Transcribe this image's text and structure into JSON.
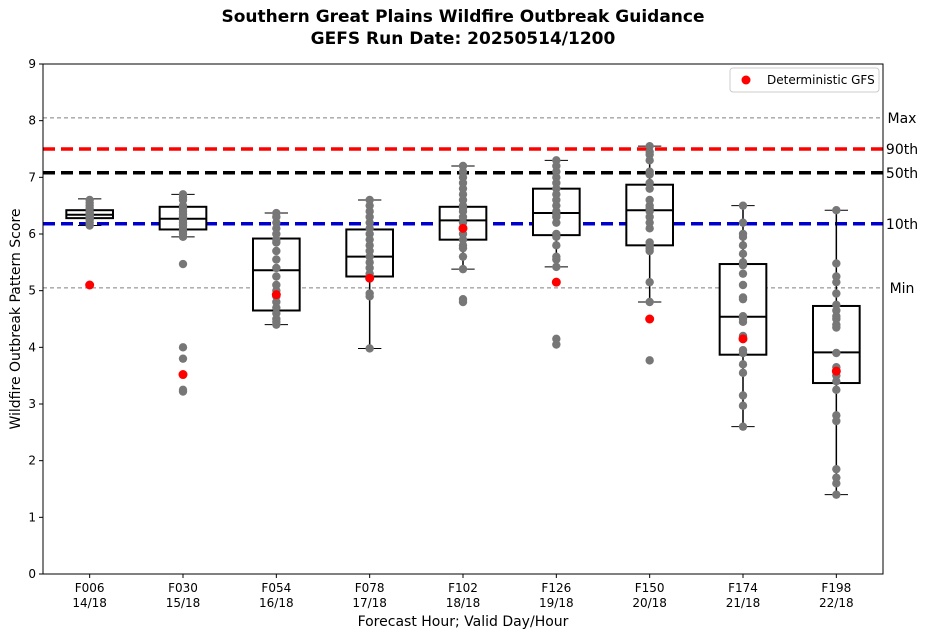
{
  "chart_data": {
    "type": "box",
    "title": "Southern Great Plains Wildfire Outbreak Guidance",
    "subtitle": "GEFS Run Date: 20250514/1200",
    "xlabel": "Forecast Hour; Valid Day/Hour",
    "ylabel": "Wildfire Outbreak Pattern Score",
    "ylim": [
      0,
      9
    ],
    "yticks": [
      "0",
      "1",
      "2",
      "3",
      "4",
      "5",
      "6",
      "7",
      "8",
      "9"
    ],
    "grid": false,
    "legend": {
      "placement": "top-right",
      "entries": [
        {
          "label": "Deterministic GFS",
          "color": "#ff0000"
        }
      ]
    },
    "reference_lines": [
      {
        "label": "Max",
        "value": 8.05,
        "color": "#808080",
        "style": "dashed-thin"
      },
      {
        "label": "90th",
        "value": 7.5,
        "color": "#ff0000",
        "style": "dashed-thick"
      },
      {
        "label": "50th",
        "value": 7.08,
        "color": "#000000",
        "style": "dashed-thick"
      },
      {
        "label": "10th",
        "value": 6.18,
        "color": "#0000cc",
        "style": "dashed-thick"
      },
      {
        "label": "Min",
        "value": 5.05,
        "color": "#808080",
        "style": "dashed-thin"
      }
    ],
    "categories": [
      {
        "hour": "F006",
        "valid": "14/18"
      },
      {
        "hour": "F030",
        "valid": "15/18"
      },
      {
        "hour": "F054",
        "valid": "16/18"
      },
      {
        "hour": "F078",
        "valid": "17/18"
      },
      {
        "hour": "F102",
        "valid": "18/18"
      },
      {
        "hour": "F126",
        "valid": "19/18"
      },
      {
        "hour": "F150",
        "valid": "20/18"
      },
      {
        "hour": "F174",
        "valid": "21/18"
      },
      {
        "hour": "F198",
        "valid": "22/18"
      }
    ],
    "boxes": [
      {
        "whislo": 6.15,
        "q1": 6.28,
        "med": 6.34,
        "q3": 6.42,
        "whishi": 6.62
      },
      {
        "whislo": 5.95,
        "q1": 6.08,
        "med": 6.27,
        "q3": 6.48,
        "whishi": 6.7
      },
      {
        "whislo": 4.4,
        "q1": 4.65,
        "med": 5.36,
        "q3": 5.92,
        "whishi": 6.37
      },
      {
        "whislo": 3.98,
        "q1": 5.25,
        "med": 5.6,
        "q3": 6.08,
        "whishi": 6.6
      },
      {
        "whislo": 5.38,
        "q1": 5.9,
        "med": 6.24,
        "q3": 6.48,
        "whishi": 7.2
      },
      {
        "whislo": 5.42,
        "q1": 5.98,
        "med": 6.37,
        "q3": 6.8,
        "whishi": 7.3
      },
      {
        "whislo": 4.8,
        "q1": 5.8,
        "med": 6.42,
        "q3": 6.87,
        "whishi": 7.55
      },
      {
        "whislo": 2.6,
        "q1": 3.87,
        "med": 4.54,
        "q3": 5.47,
        "whishi": 6.5
      },
      {
        "whislo": 1.4,
        "q1": 3.37,
        "med": 3.91,
        "q3": 4.73,
        "whishi": 6.42
      }
    ],
    "members": [
      [
        6.6,
        6.55,
        6.5,
        6.45,
        6.4,
        6.38,
        6.36,
        6.34,
        6.32,
        6.3,
        6.28,
        6.25,
        6.2,
        6.15
      ],
      [
        6.7,
        6.65,
        6.6,
        6.5,
        6.45,
        6.4,
        6.35,
        6.3,
        6.28,
        6.25,
        6.2,
        6.15,
        6.1,
        6.05,
        6.0,
        5.95,
        5.47,
        4.0,
        3.8,
        3.25,
        3.22
      ],
      [
        6.37,
        6.3,
        6.2,
        6.1,
        6.0,
        5.9,
        5.85,
        5.7,
        5.55,
        5.4,
        5.25,
        5.1,
        5.0,
        4.9,
        4.8,
        4.7,
        4.6,
        4.5,
        4.45,
        4.4
      ],
      [
        6.6,
        6.5,
        6.4,
        6.3,
        6.2,
        6.1,
        6.0,
        5.9,
        5.8,
        5.7,
        5.6,
        5.5,
        5.4,
        5.3,
        5.25,
        4.95,
        4.9,
        3.98
      ],
      [
        7.2,
        7.1,
        7.0,
        6.9,
        6.8,
        6.7,
        6.6,
        6.5,
        6.45,
        6.4,
        6.3,
        6.2,
        6.1,
        6.0,
        5.9,
        5.8,
        5.75,
        5.6,
        5.38,
        4.85,
        4.8
      ],
      [
        7.3,
        7.2,
        7.1,
        7.0,
        6.9,
        6.8,
        6.7,
        6.6,
        6.5,
        6.4,
        6.35,
        6.3,
        6.2,
        6.0,
        5.95,
        5.8,
        5.6,
        5.55,
        5.42,
        4.15,
        4.05
      ],
      [
        7.55,
        7.45,
        7.4,
        7.3,
        7.1,
        7.05,
        6.9,
        6.8,
        6.6,
        6.5,
        6.45,
        6.4,
        6.3,
        6.2,
        6.1,
        5.85,
        5.8,
        5.75,
        5.7,
        5.15,
        4.8,
        3.77
      ],
      [
        6.5,
        6.2,
        6.0,
        5.95,
        5.8,
        5.65,
        5.5,
        5.45,
        5.3,
        5.1,
        4.88,
        4.85,
        4.55,
        4.5,
        4.45,
        4.2,
        3.95,
        3.9,
        3.7,
        3.55,
        3.15,
        2.97,
        2.6
      ],
      [
        6.42,
        5.48,
        5.25,
        5.15,
        4.95,
        4.75,
        4.65,
        4.55,
        4.5,
        4.4,
        4.35,
        3.9,
        3.65,
        3.5,
        3.4,
        3.25,
        2.8,
        2.7,
        1.85,
        1.7,
        1.6,
        1.4
      ]
    ],
    "deterministic": [
      5.1,
      3.52,
      4.93,
      5.22,
      6.1,
      5.15,
      4.5,
      4.15,
      3.58
    ]
  }
}
